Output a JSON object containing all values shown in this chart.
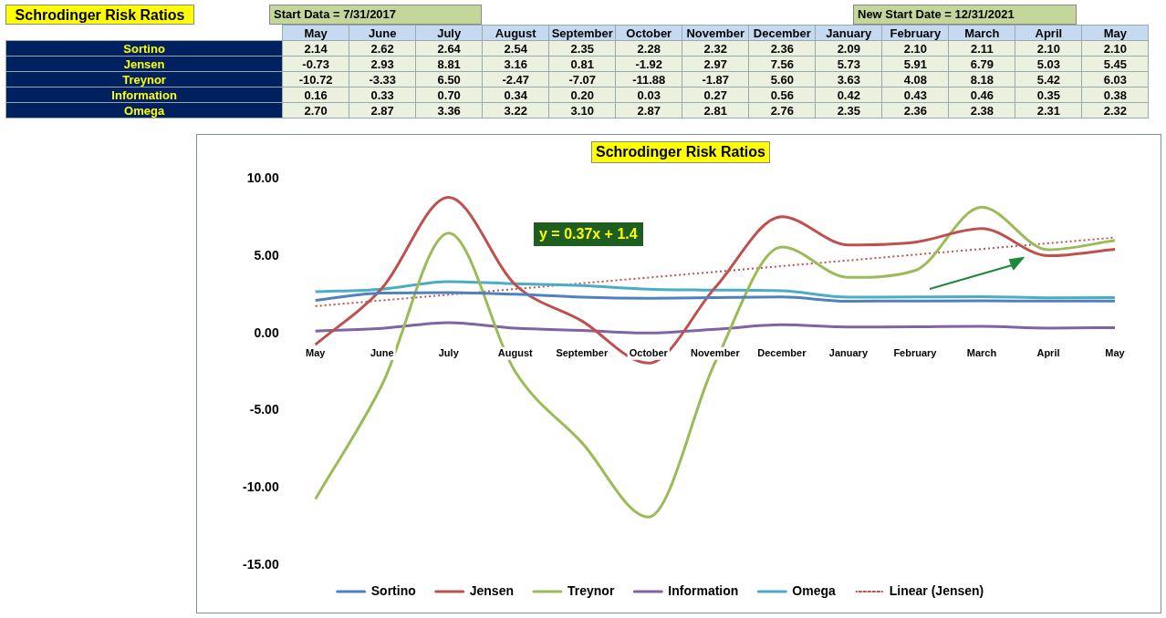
{
  "chart_data": {
    "type": "line",
    "title": "Schrodinger Risk Ratios",
    "categories": [
      "May",
      "June",
      "July",
      "August",
      "September",
      "October",
      "November",
      "December",
      "January",
      "February",
      "March",
      "April",
      "May"
    ],
    "series": [
      {
        "name": "Sortino",
        "color": "#4f81bd",
        "values": [
          2.14,
          2.62,
          2.64,
          2.54,
          2.35,
          2.28,
          2.32,
          2.36,
          2.09,
          2.1,
          2.11,
          2.1,
          2.1
        ],
        "value_labels": [
          "2.14",
          "2.62",
          "2.64",
          "2.54",
          "2.35",
          "2.28",
          "2.32",
          "2.36",
          "2.09",
          "2.10",
          "2.11",
          "2.10",
          "2.10"
        ]
      },
      {
        "name": "Jensen",
        "color": "#c0504d",
        "values": [
          -0.73,
          2.93,
          8.81,
          3.16,
          0.81,
          -1.92,
          2.97,
          7.56,
          5.73,
          5.91,
          6.79,
          5.03,
          5.45
        ],
        "value_labels": [
          "-0.73",
          "2.93",
          "8.81",
          "3.16",
          "0.81",
          "-1.92",
          "2.97",
          "7.56",
          "5.73",
          "5.91",
          "6.79",
          "5.03",
          "5.45"
        ]
      },
      {
        "name": "Treynor",
        "color": "#9bbb59",
        "values": [
          -10.72,
          -3.33,
          6.5,
          -2.47,
          -7.07,
          -11.88,
          -1.87,
          5.6,
          3.63,
          4.08,
          8.18,
          5.42,
          6.03
        ],
        "value_labels": [
          "-10.72",
          "-3.33",
          "6.50",
          "-2.47",
          "-7.07",
          "-11.88",
          "-1.87",
          "5.60",
          "3.63",
          "4.08",
          "8.18",
          "5.42",
          "6.03"
        ]
      },
      {
        "name": "Information",
        "color": "#8064a2",
        "values": [
          0.16,
          0.33,
          0.7,
          0.34,
          0.2,
          0.03,
          0.27,
          0.56,
          0.42,
          0.43,
          0.46,
          0.35,
          0.38
        ],
        "value_labels": [
          "0.16",
          "0.33",
          "0.70",
          "0.34",
          "0.20",
          "0.03",
          "0.27",
          "0.56",
          "0.42",
          "0.43",
          "0.46",
          "0.35",
          "0.38"
        ]
      },
      {
        "name": "Omega",
        "color": "#4bacc6",
        "values": [
          2.7,
          2.87,
          3.36,
          3.22,
          3.1,
          2.87,
          2.81,
          2.76,
          2.35,
          2.36,
          2.38,
          2.31,
          2.32
        ],
        "value_labels": [
          "2.70",
          "2.87",
          "3.36",
          "3.22",
          "3.10",
          "2.87",
          "2.81",
          "2.76",
          "2.35",
          "2.36",
          "2.38",
          "2.31",
          "2.32"
        ]
      },
      {
        "name": "Linear (Jensen)",
        "color": "#c0504d",
        "line_style": "dotted",
        "values": [
          1.77,
          2.14,
          2.51,
          2.88,
          3.25,
          3.62,
          3.99,
          4.36,
          4.73,
          5.1,
          5.47,
          5.84,
          6.21
        ]
      }
    ],
    "ylim": [
      -15,
      10
    ],
    "yticks": [
      {
        "value": -15,
        "label": "-15.00"
      },
      {
        "value": -10,
        "label": "-10.00"
      },
      {
        "value": -5,
        "label": "-5.00"
      },
      {
        "value": 0,
        "label": "0.00"
      },
      {
        "value": 5,
        "label": "5.00"
      },
      {
        "value": 10,
        "label": "10.00"
      }
    ],
    "grid": false,
    "legend": "bottom",
    "marker": "none",
    "line_style": "solid",
    "annotations": [
      "Schrodinger Risk Ratios",
      "Start Data = 7/31/2017",
      "New Start Date = 12/31/2021",
      "y = 0.37x + 1.4"
    ]
  }
}
